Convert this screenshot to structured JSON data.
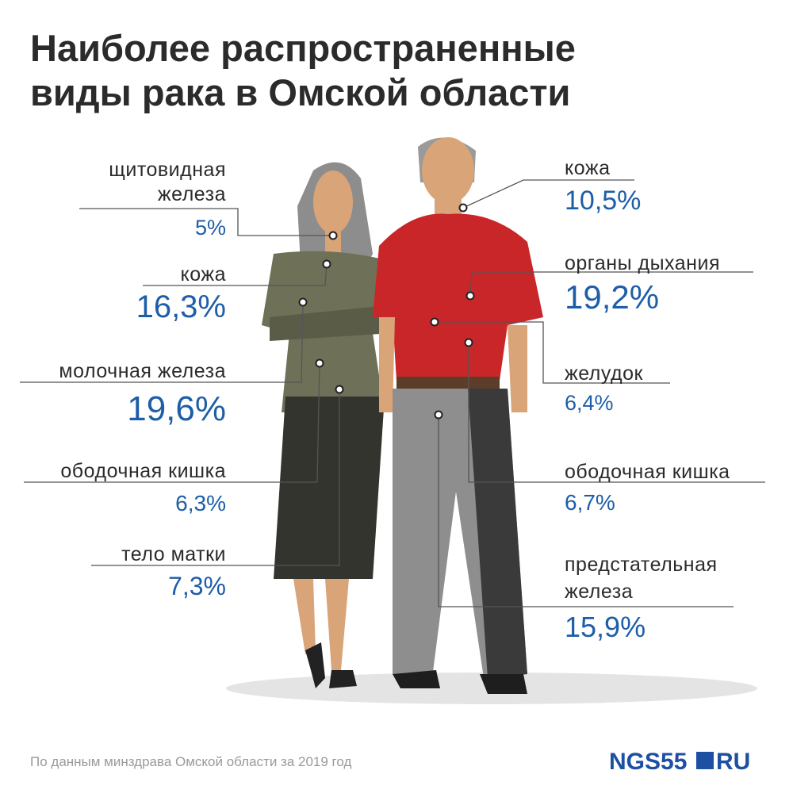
{
  "title": [
    "Наиболее распространенные",
    "виды рака в Омской области"
  ],
  "women": [
    {
      "label": [
        "щитовидная",
        "железа"
      ],
      "value": "5%"
    },
    {
      "label": [
        "кожа"
      ],
      "value": "16,3%"
    },
    {
      "label": [
        "молочная железа"
      ],
      "value": "19,6%"
    },
    {
      "label": [
        "ободочная кишка"
      ],
      "value": "6,3%"
    },
    {
      "label": [
        "тело матки"
      ],
      "value": "7,3%"
    }
  ],
  "men": [
    {
      "label": [
        "кожа"
      ],
      "value": "10,5%"
    },
    {
      "label": [
        "органы дыхания"
      ],
      "value": "19,2%"
    },
    {
      "label": [
        "желудок"
      ],
      "value": "6,4%"
    },
    {
      "label": [
        "ободочная кишка"
      ],
      "value": "6,7%"
    },
    {
      "label": [
        "предстательная",
        "железа"
      ],
      "value": "15,9%"
    }
  ],
  "source": "По данным минздрава Омской области за 2019 год",
  "logo": {
    "main": "NGS55",
    "suffix": "RU"
  }
}
